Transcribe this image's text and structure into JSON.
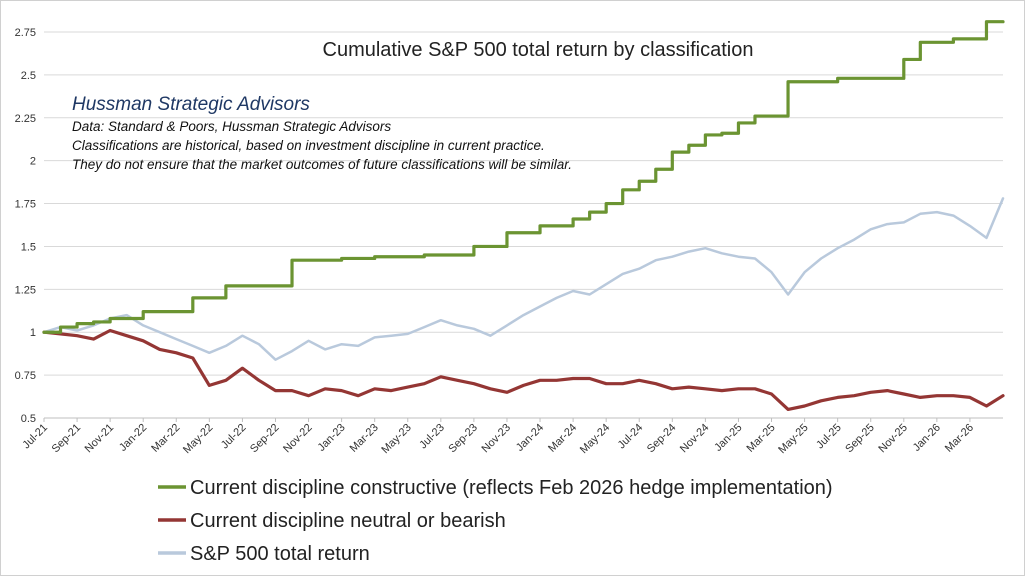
{
  "chart_data": {
    "type": "line",
    "title": "Cumulative S&P 500 total return by classification",
    "annotations": {
      "brand": "Hussman Strategic Advisors",
      "notes": [
        "Data: Standard & Poors, Hussman Strategic Advisors",
        "Classifications are historical,  based on investment discipline in current practice.",
        "They do not ensure that the market outcomes of future classifications will be similar."
      ]
    },
    "xlabel": "",
    "ylabel": "",
    "ylim": [
      0.5,
      2.75
    ],
    "yticks": [
      "0.5",
      "0.75",
      "1",
      "1.25",
      "1.5",
      "1.75",
      "2",
      "2.25",
      "2.5",
      "2.75"
    ],
    "x_tick_labels": [
      "Jul-21",
      "Sep-21",
      "Nov-21",
      "Jan-22",
      "Mar-22",
      "May-22",
      "Jul-22",
      "Sep-22",
      "Nov-22",
      "Jan-23",
      "Mar-23",
      "May-23",
      "Jul-23",
      "Sep-23",
      "Nov-23",
      "Jan-24",
      "Mar-24",
      "May-24",
      "Jul-24",
      "Sep-24",
      "Nov-24",
      "Jan-25",
      "Mar-25",
      "May-25",
      "Jul-25",
      "Sep-25",
      "Nov-25",
      "Jan-26",
      "Mar-26"
    ],
    "grid": "horizontal",
    "legend_position": "bottom",
    "x": [
      "2021-07",
      "2021-08",
      "2021-09",
      "2021-10",
      "2021-11",
      "2021-12",
      "2022-01",
      "2022-02",
      "2022-03",
      "2022-04",
      "2022-05",
      "2022-06",
      "2022-07",
      "2022-08",
      "2022-09",
      "2022-10",
      "2022-11",
      "2022-12",
      "2023-01",
      "2023-02",
      "2023-03",
      "2023-04",
      "2023-05",
      "2023-06",
      "2023-07",
      "2023-08",
      "2023-09",
      "2023-10",
      "2023-11",
      "2023-12",
      "2024-01",
      "2024-02",
      "2024-03",
      "2024-04",
      "2024-05",
      "2024-06",
      "2024-07",
      "2024-08",
      "2024-09",
      "2024-10",
      "2024-11",
      "2024-12",
      "2025-01",
      "2025-02",
      "2025-03",
      "2025-04",
      "2025-05",
      "2025-06",
      "2025-07",
      "2025-08",
      "2025-09",
      "2025-10",
      "2025-11",
      "2025-12",
      "2026-01",
      "2026-02",
      "2026-03",
      "2026-04",
      "2026-05"
    ],
    "series": [
      {
        "name": "Current discipline constructive (reflects Feb 2026 hedge implementation)",
        "color": "#6b9432",
        "values": [
          1.0,
          1.03,
          1.05,
          1.06,
          1.08,
          1.08,
          1.12,
          1.12,
          1.12,
          1.2,
          1.2,
          1.27,
          1.27,
          1.27,
          1.27,
          1.42,
          1.42,
          1.42,
          1.43,
          1.43,
          1.44,
          1.44,
          1.44,
          1.45,
          1.45,
          1.45,
          1.5,
          1.5,
          1.58,
          1.58,
          1.62,
          1.62,
          1.66,
          1.7,
          1.75,
          1.83,
          1.88,
          1.95,
          2.05,
          2.09,
          2.15,
          2.16,
          2.22,
          2.26,
          2.26,
          2.46,
          2.46,
          2.46,
          2.48,
          2.48,
          2.48,
          2.48,
          2.59,
          2.69,
          2.69,
          2.71,
          2.71,
          2.81,
          2.81
        ]
      },
      {
        "name": "Current discipline neutral or bearish",
        "color": "#943634",
        "values": [
          1.0,
          0.99,
          0.98,
          0.96,
          1.01,
          0.98,
          0.95,
          0.9,
          0.88,
          0.85,
          0.69,
          0.72,
          0.79,
          0.72,
          0.66,
          0.66,
          0.63,
          0.67,
          0.66,
          0.63,
          0.67,
          0.66,
          0.68,
          0.7,
          0.74,
          0.72,
          0.7,
          0.67,
          0.65,
          0.69,
          0.72,
          0.72,
          0.73,
          0.73,
          0.7,
          0.7,
          0.72,
          0.7,
          0.67,
          0.68,
          0.67,
          0.66,
          0.67,
          0.67,
          0.64,
          0.55,
          0.57,
          0.6,
          0.62,
          0.63,
          0.65,
          0.66,
          0.64,
          0.62,
          0.63,
          0.63,
          0.62,
          0.57,
          0.63
        ]
      },
      {
        "name": "S&P 500 total return",
        "color": "#b9c9dc",
        "values": [
          1.0,
          1.03,
          1.01,
          1.04,
          1.08,
          1.1,
          1.04,
          1.0,
          0.96,
          0.92,
          0.88,
          0.92,
          0.98,
          0.93,
          0.84,
          0.89,
          0.95,
          0.9,
          0.93,
          0.92,
          0.97,
          0.98,
          0.99,
          1.03,
          1.07,
          1.04,
          1.02,
          0.98,
          1.04,
          1.1,
          1.15,
          1.2,
          1.24,
          1.22,
          1.28,
          1.34,
          1.37,
          1.42,
          1.44,
          1.47,
          1.49,
          1.46,
          1.44,
          1.43,
          1.35,
          1.22,
          1.35,
          1.43,
          1.49,
          1.54,
          1.6,
          1.63,
          1.64,
          1.69,
          1.7,
          1.68,
          1.62,
          1.55,
          1.78
        ]
      }
    ]
  }
}
